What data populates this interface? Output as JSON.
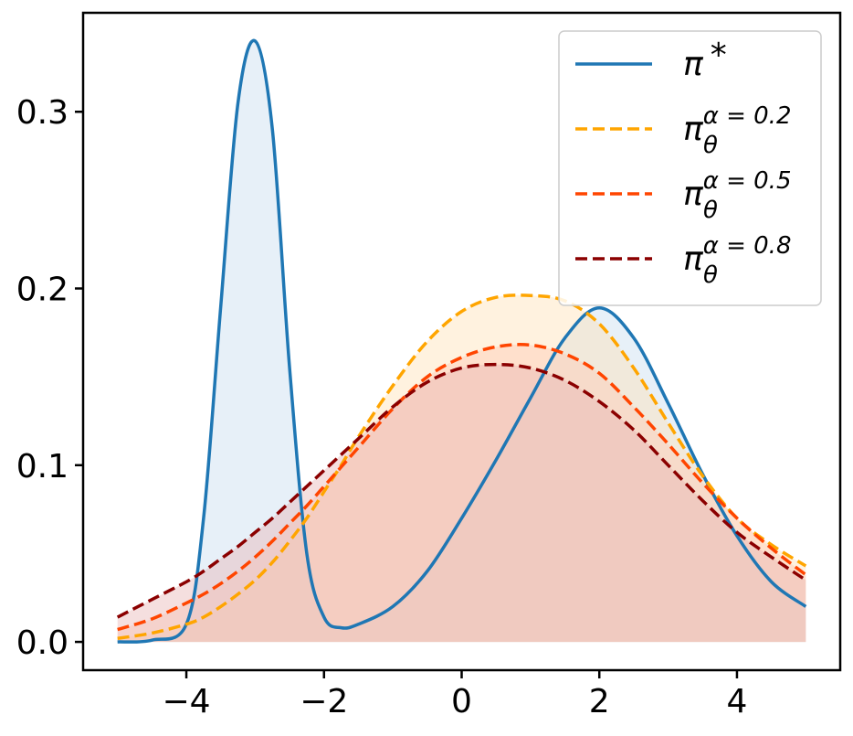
{
  "chart_data": {
    "type": "line",
    "title": "",
    "xlabel": "",
    "ylabel": "",
    "xlim": [
      -5.5,
      5.5
    ],
    "ylim": [
      -0.016,
      0.356
    ],
    "xticks": [
      -4,
      -2,
      0,
      2,
      4
    ],
    "xtick_labels": [
      "−4",
      "−2",
      "0",
      "2",
      "4"
    ],
    "yticks": [
      0.0,
      0.1,
      0.2,
      0.3
    ],
    "ytick_labels": [
      "0.0",
      "0.1",
      "0.2",
      "0.3"
    ],
    "grid": false,
    "legend_position": "top-right",
    "x": [
      -5,
      -4.5,
      -4,
      -3.75,
      -3.5,
      -3.25,
      -3,
      -2.75,
      -2.5,
      -2.25,
      -2,
      -1.75,
      -1.5,
      -1,
      -0.5,
      0,
      0.5,
      1,
      1.5,
      2,
      2.5,
      3,
      3.5,
      4,
      4.5,
      5
    ],
    "series": [
      {
        "name": "π*",
        "legend_main": "π",
        "legend_sup": "*",
        "legend_sub": "",
        "style": "solid",
        "color": "#1f77b4",
        "fill": "#c6dbef",
        "values": [
          0.0,
          0.001,
          0.01,
          0.07,
          0.19,
          0.305,
          0.34,
          0.29,
          0.155,
          0.05,
          0.014,
          0.008,
          0.01,
          0.02,
          0.04,
          0.07,
          0.103,
          0.138,
          0.172,
          0.189,
          0.172,
          0.135,
          0.095,
          0.06,
          0.034,
          0.02
        ]
      },
      {
        "name": "πθ α = 0.2",
        "legend_main": "π",
        "legend_sup": "α = 0.2",
        "legend_sub": "θ",
        "style": "dashed",
        "color": "#ffa500",
        "fill": "#ffe0b3",
        "values": [
          0.002,
          0.005,
          0.01,
          0.014,
          0.02,
          0.027,
          0.035,
          0.045,
          0.057,
          0.07,
          0.085,
          0.1,
          0.116,
          0.145,
          0.17,
          0.187,
          0.195,
          0.196,
          0.193,
          0.18,
          0.155,
          0.124,
          0.094,
          0.07,
          0.055,
          0.043
        ]
      },
      {
        "name": "πθ α = 0.5",
        "legend_main": "π",
        "legend_sup": "α = 0.5",
        "legend_sub": "θ",
        "style": "dashed",
        "color": "#ff4500",
        "fill": "#ffc9b3",
        "values": [
          0.007,
          0.013,
          0.022,
          0.027,
          0.033,
          0.04,
          0.048,
          0.057,
          0.067,
          0.077,
          0.088,
          0.099,
          0.11,
          0.132,
          0.15,
          0.161,
          0.167,
          0.168,
          0.163,
          0.152,
          0.133,
          0.112,
          0.09,
          0.07,
          0.053,
          0.038
        ]
      },
      {
        "name": "πθ α = 0.8",
        "legend_main": "π",
        "legend_sup": "α = 0.8",
        "legend_sub": "θ",
        "style": "dashed",
        "color": "#8b0000",
        "fill": "#e6b3b3",
        "values": [
          0.014,
          0.024,
          0.034,
          0.04,
          0.047,
          0.054,
          0.062,
          0.07,
          0.079,
          0.088,
          0.097,
          0.106,
          0.115,
          0.133,
          0.147,
          0.155,
          0.157,
          0.155,
          0.148,
          0.136,
          0.12,
          0.1,
          0.08,
          0.062,
          0.048,
          0.035
        ]
      }
    ]
  }
}
